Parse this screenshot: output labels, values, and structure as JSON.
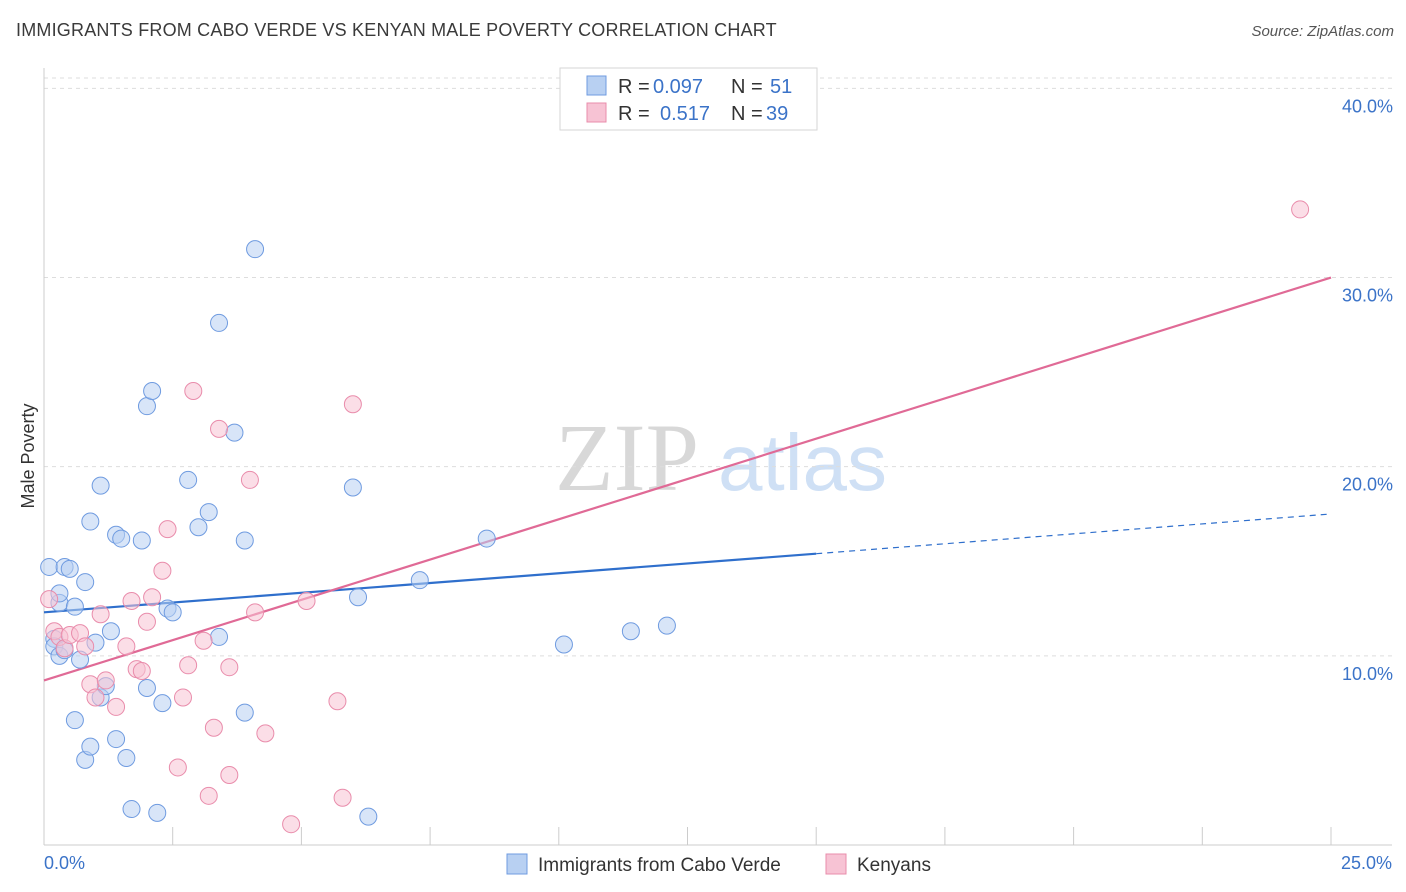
{
  "title": "IMMIGRANTS FROM CABO VERDE VS KENYAN MALE POVERTY CORRELATION CHART",
  "source": "Source: ZipAtlas.com",
  "watermark": {
    "zip": "ZIP",
    "atlas": "atlas"
  },
  "colors": {
    "blue_fill": "#b8d0f2",
    "blue_stroke": "#6f9be0",
    "blue_line": "#2f6fcc",
    "pink_fill": "#f7c3d4",
    "pink_stroke": "#e98cab",
    "pink_line": "#e06a96",
    "tick_text": "#3b73c8",
    "grid": "#dddddd"
  },
  "legend": {
    "rows": [
      {
        "r_label": "R =",
        "r_value": "0.097",
        "n_label": "N =",
        "n_value": "51",
        "series": "blue"
      },
      {
        "r_label": "R =",
        "r_value": "0.517",
        "n_label": "N =",
        "n_value": "39",
        "series": "pink"
      }
    ]
  },
  "chart_data": {
    "type": "scatter",
    "title": "IMMIGRANTS FROM CABO VERDE VS KENYAN MALE POVERTY CORRELATION CHART",
    "xlabel": "",
    "ylabel": "Male Poverty",
    "xlim": [
      0,
      25
    ],
    "ylim": [
      0,
      41.5
    ],
    "x_tick_labels": [
      "0.0%",
      "25.0%"
    ],
    "y_ticks": [
      10,
      20,
      30,
      40
    ],
    "y_tick_labels": [
      "10.0%",
      "20.0%",
      "30.0%",
      "40.0%"
    ],
    "grid": true,
    "legend_position": "top-center",
    "series": [
      {
        "name": "Immigrants from Cabo Verde",
        "color": "blue",
        "points": [
          [
            0.1,
            14.7
          ],
          [
            0.2,
            10.9
          ],
          [
            0.2,
            10.5
          ],
          [
            0.3,
            12.8
          ],
          [
            0.3,
            10.0
          ],
          [
            0.3,
            13.3
          ],
          [
            0.4,
            14.7
          ],
          [
            0.4,
            10.3
          ],
          [
            0.5,
            14.6
          ],
          [
            0.6,
            6.6
          ],
          [
            0.6,
            12.6
          ],
          [
            0.7,
            9.8
          ],
          [
            0.8,
            13.9
          ],
          [
            0.8,
            4.5
          ],
          [
            0.9,
            5.2
          ],
          [
            0.9,
            17.1
          ],
          [
            1.0,
            10.7
          ],
          [
            1.1,
            19.0
          ],
          [
            1.1,
            7.8
          ],
          [
            1.2,
            8.4
          ],
          [
            1.3,
            11.3
          ],
          [
            1.4,
            16.4
          ],
          [
            1.4,
            5.6
          ],
          [
            1.5,
            16.2
          ],
          [
            1.6,
            4.6
          ],
          [
            1.7,
            1.9
          ],
          [
            1.9,
            16.1
          ],
          [
            2.0,
            8.3
          ],
          [
            2.0,
            23.2
          ],
          [
            2.1,
            24.0
          ],
          [
            2.2,
            1.7
          ],
          [
            2.3,
            7.5
          ],
          [
            2.4,
            12.5
          ],
          [
            2.5,
            12.3
          ],
          [
            2.8,
            19.3
          ],
          [
            3.0,
            16.8
          ],
          [
            3.2,
            17.6
          ],
          [
            3.4,
            27.6
          ],
          [
            3.4,
            11.0
          ],
          [
            3.7,
            21.8
          ],
          [
            3.9,
            16.1
          ],
          [
            3.9,
            7.0
          ],
          [
            4.1,
            31.5
          ],
          [
            6.0,
            18.9
          ],
          [
            6.1,
            13.1
          ],
          [
            6.3,
            1.5
          ],
          [
            7.3,
            14.0
          ],
          [
            8.6,
            16.2
          ],
          [
            10.1,
            10.6
          ],
          [
            11.4,
            11.3
          ],
          [
            12.1,
            11.6
          ]
        ],
        "trend": {
          "x0": 0,
          "y0": 12.3,
          "x1": 15,
          "y1": 15.4,
          "dashed_to_x": 25,
          "dashed_to_y": 17.5
        }
      },
      {
        "name": "Kenyans",
        "color": "pink",
        "points": [
          [
            0.1,
            13.0
          ],
          [
            0.2,
            11.3
          ],
          [
            0.3,
            11.0
          ],
          [
            0.4,
            10.4
          ],
          [
            0.5,
            11.1
          ],
          [
            0.7,
            11.2
          ],
          [
            0.8,
            10.5
          ],
          [
            0.9,
            8.5
          ],
          [
            1.0,
            7.8
          ],
          [
            1.1,
            12.2
          ],
          [
            1.2,
            8.7
          ],
          [
            1.4,
            7.3
          ],
          [
            1.6,
            10.5
          ],
          [
            1.7,
            12.9
          ],
          [
            1.8,
            9.3
          ],
          [
            1.9,
            9.2
          ],
          [
            2.0,
            11.8
          ],
          [
            2.1,
            13.1
          ],
          [
            2.3,
            14.5
          ],
          [
            2.4,
            16.7
          ],
          [
            2.6,
            4.1
          ],
          [
            2.7,
            7.8
          ],
          [
            2.8,
            9.5
          ],
          [
            2.9,
            24.0
          ],
          [
            3.1,
            10.8
          ],
          [
            3.2,
            2.6
          ],
          [
            3.3,
            6.2
          ],
          [
            3.4,
            22.0
          ],
          [
            3.6,
            9.4
          ],
          [
            3.6,
            3.7
          ],
          [
            4.0,
            19.3
          ],
          [
            4.1,
            12.3
          ],
          [
            4.3,
            5.9
          ],
          [
            4.8,
            1.1
          ],
          [
            5.1,
            12.9
          ],
          [
            5.7,
            7.6
          ],
          [
            5.8,
            2.5
          ],
          [
            6.0,
            23.3
          ],
          [
            24.4,
            33.6
          ]
        ],
        "trend": {
          "x0": 0,
          "y0": 8.7,
          "x1": 25,
          "y1": 30.0
        }
      }
    ]
  }
}
